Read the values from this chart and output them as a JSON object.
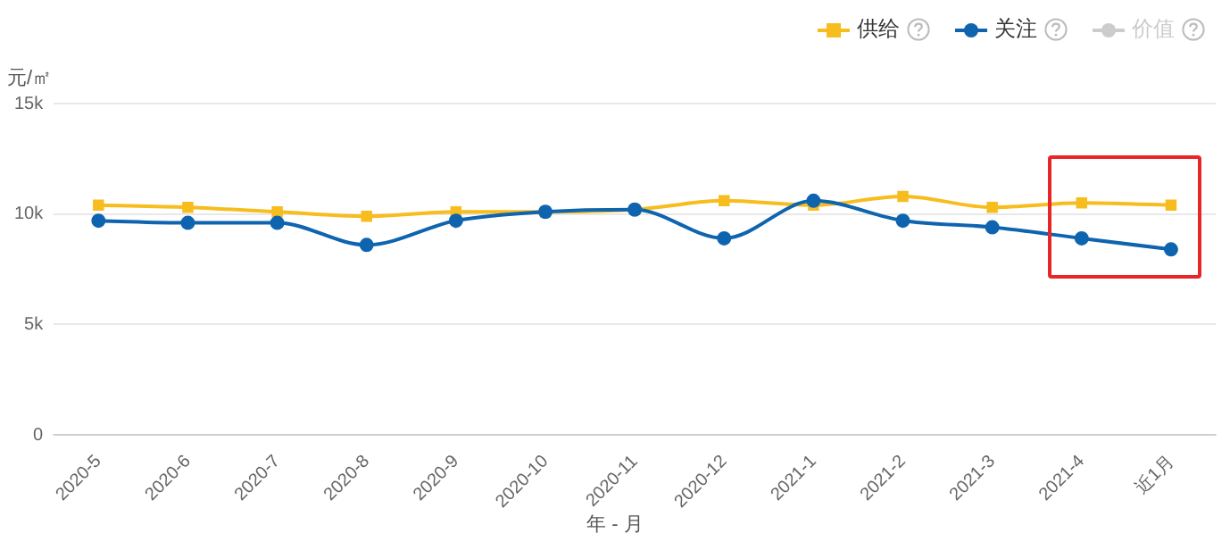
{
  "chart_data": {
    "type": "line",
    "ylabel": "元/㎡",
    "xlabel": "年 - 月",
    "categories": [
      "2020-5",
      "2020-6",
      "2020-7",
      "2020-8",
      "2020-9",
      "2020-10",
      "2020-11",
      "2020-12",
      "2021-1",
      "2021-2",
      "2021-3",
      "2021-4",
      "近1月"
    ],
    "series": [
      {
        "name": "供给",
        "color": "#f7bd1e",
        "marker": "square",
        "values": [
          10400,
          10300,
          10100,
          9900,
          10100,
          10100,
          10200,
          10600,
          10400,
          10800,
          10300,
          10500,
          10400
        ]
      },
      {
        "name": "关注",
        "color": "#0e64ae",
        "marker": "circle",
        "values": [
          9700,
          9600,
          9600,
          8600,
          9700,
          10100,
          10200,
          8900,
          10600,
          9700,
          9400,
          8900,
          8400
        ]
      },
      {
        "name": "价值",
        "color": "#cccccc",
        "marker": "circle",
        "values": [
          null,
          null,
          null,
          null,
          null,
          null,
          null,
          null,
          null,
          null,
          null,
          null,
          null
        ]
      }
    ],
    "ylim": [
      0,
      15000
    ],
    "yticks": [
      0,
      {
        "value": 5000,
        "label": "5k"
      },
      {
        "value": 10000,
        "label": "10k"
      },
      {
        "value": 15000,
        "label": "15k"
      }
    ],
    "grid": "y",
    "legend": "top right"
  }
}
